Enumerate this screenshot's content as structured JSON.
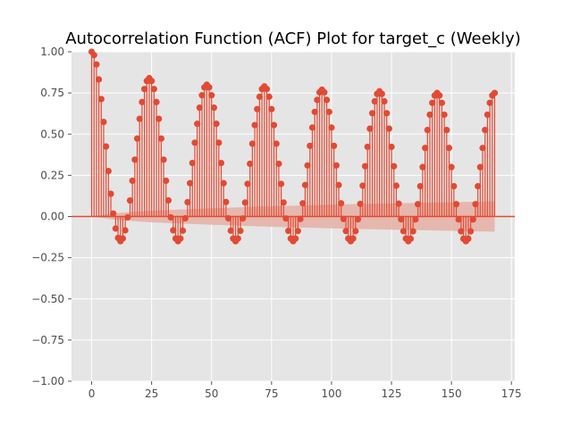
{
  "chart_data": {
    "type": "acf_stem",
    "title": "Autocorrelation Function (ACF) Plot for target_c (Weekly)",
    "xlabel": "",
    "ylabel": "",
    "xlim": [
      -8.4,
      176.4
    ],
    "ylim": [
      -1.0,
      1.0
    ],
    "x_ticks": [
      0,
      25,
      50,
      75,
      100,
      125,
      150,
      175
    ],
    "x_tick_labels": [
      "0",
      "25",
      "50",
      "75",
      "100",
      "125",
      "150",
      "175"
    ],
    "y_ticks": [
      1.0,
      0.75,
      0.5,
      0.25,
      0.0,
      -0.25,
      -0.5,
      -0.75,
      -1.0
    ],
    "y_tick_labels": [
      "1.00",
      "0.75",
      "0.50",
      "0.25",
      "0.00",
      "−0.25",
      "−0.50",
      "−0.75",
      "−1.00"
    ],
    "grid": true,
    "lags": {
      "start": 0,
      "end": 168,
      "step": 1
    },
    "acf_model": {
      "description": "seasonal autocorrelation, period 24 lags",
      "period": 24,
      "peaks": [
        1.0,
        0.84,
        0.8,
        0.79,
        0.77,
        0.76,
        0.75,
        0.75
      ],
      "trough": -0.15
    },
    "confidence_band": {
      "lags": [
        0,
        10,
        25,
        50,
        75,
        100,
        125,
        150,
        168
      ],
      "upper": [
        0.0,
        0.02,
        0.035,
        0.05,
        0.062,
        0.072,
        0.08,
        0.087,
        0.092
      ],
      "lower": [
        0.0,
        -0.02,
        -0.035,
        -0.05,
        -0.062,
        -0.072,
        -0.08,
        -0.087,
        -0.092
      ]
    },
    "colors": {
      "stem": "#E24A33",
      "band": "#E6A79B",
      "axes_bg": "#E5E5E5",
      "grid": "#FFFFFF",
      "zero_line": "#E24A33",
      "tick_label": "#4D4D4D"
    }
  }
}
